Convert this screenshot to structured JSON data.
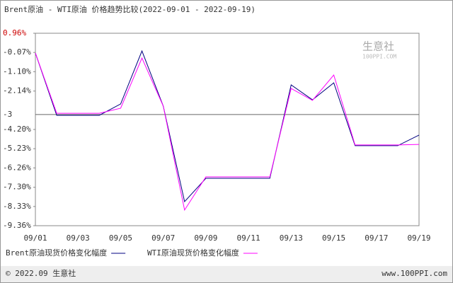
{
  "chart_data": {
    "type": "line",
    "title": "Brent原油 - WTI原油 价格趋势比较(2022-09-01 - 2022-09-19)",
    "watermark": [
      "生意社",
      "100PPI.COM"
    ],
    "footer": [
      "© 2022.09 生意社",
      "www.100PPI.com"
    ],
    "categories": [
      "09/01",
      null,
      "09/03",
      null,
      "09/05",
      null,
      "09/07",
      null,
      "09/09",
      null,
      "09/11",
      null,
      "09/13",
      null,
      "09/15",
      null,
      "09/17",
      null,
      "09/19"
    ],
    "series": [
      {
        "name": "Brent原油现货价格变化幅度",
        "color": "#000080",
        "values": [
          -0.1,
          -3.44,
          -3.44,
          -3.44,
          -2.83,
          0.01,
          -2.95,
          -8.07,
          -6.82,
          -6.82,
          -6.82,
          -6.82,
          -1.81,
          -2.61,
          -1.7,
          -5.07,
          -5.07,
          -5.07,
          -4.5
        ]
      },
      {
        "name": "WTI原油现货价格变化幅度",
        "color": "#ff00ff",
        "values": [
          -0.1,
          -3.33,
          -3.33,
          -3.33,
          -3.06,
          -0.37,
          -2.95,
          -8.52,
          -6.74,
          -6.74,
          -6.74,
          -6.74,
          -2.0,
          -2.64,
          -1.28,
          -5.03,
          -5.03,
          -5.03,
          -5.0
        ]
      }
    ],
    "ylim": [
      -9.36,
      0.96
    ],
    "yticks": [
      {
        "value": 0.96,
        "label": "0.96%"
      },
      {
        "value": -0.07,
        "label": "-0.07%"
      },
      {
        "value": -1.1,
        "label": "-1.10%"
      },
      {
        "value": -2.14,
        "label": "-2.14%"
      },
      {
        "value": -4.2,
        "label": "-4.20%"
      },
      {
        "value": -5.23,
        "label": "-5.23%"
      },
      {
        "value": -6.26,
        "label": "-6.26%"
      },
      {
        "value": -7.3,
        "label": "-7.30%"
      },
      {
        "value": -8.33,
        "label": "-8.33%"
      },
      {
        "value": -9.36,
        "label": "-9.36%"
      }
    ],
    "reference_line": {
      "value": -3.4,
      "label": "-3",
      "color": "#666666"
    },
    "first_tick_color": "#cc0000",
    "grid": false
  }
}
